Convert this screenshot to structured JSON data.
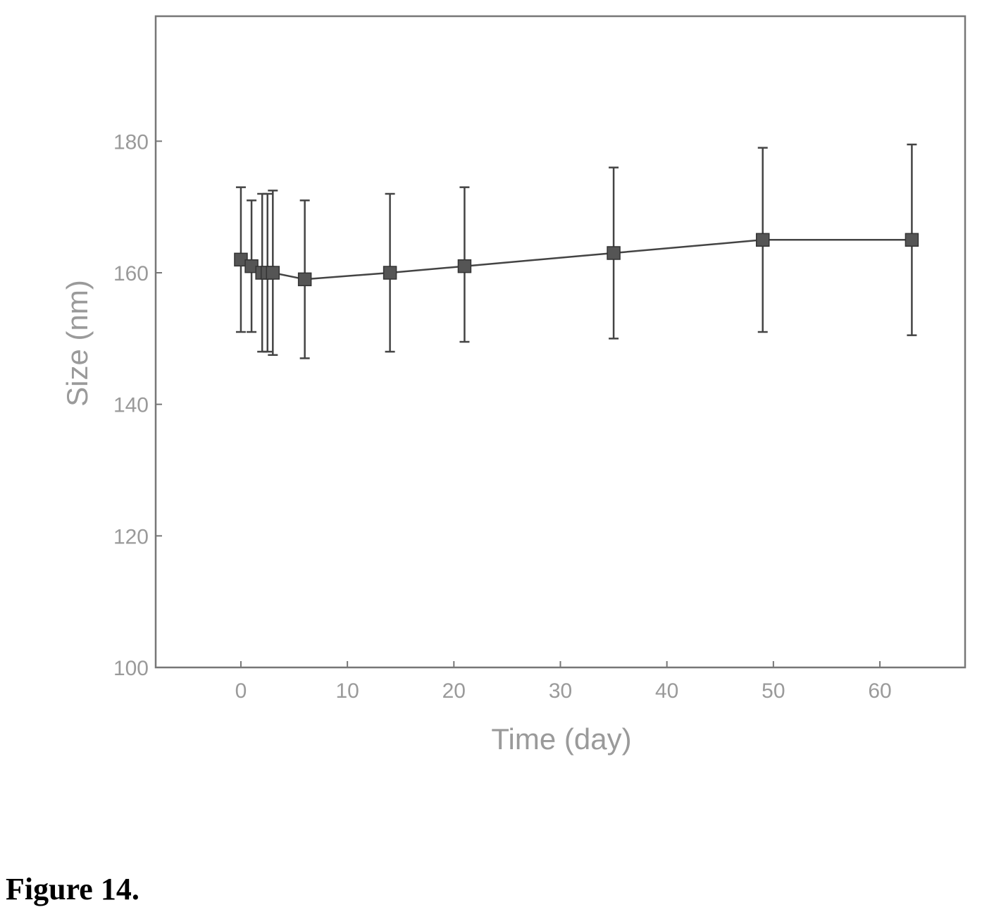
{
  "chart_data": {
    "type": "scatter",
    "xlabel": "Time (day)",
    "ylabel": "Size (nm)",
    "xlim": [
      -8,
      68
    ],
    "ylim": [
      100,
      199
    ],
    "xticks": [
      0,
      10,
      20,
      30,
      40,
      50,
      60
    ],
    "yticks": [
      100,
      120,
      140,
      160,
      180
    ],
    "grid": false,
    "series": [
      {
        "x": [
          0,
          1,
          2,
          2.5,
          3,
          6,
          14,
          21,
          35,
          49,
          63
        ],
        "y": [
          162,
          161,
          160,
          160,
          160,
          159,
          160,
          161,
          163,
          165,
          165
        ],
        "err_upper": [
          173,
          171,
          172,
          172,
          172.5,
          171,
          172,
          173,
          176,
          179,
          179.5
        ],
        "err_lower": [
          151,
          151,
          148,
          148,
          147.5,
          147,
          148,
          149.5,
          150,
          151,
          150.5
        ]
      }
    ],
    "marker": "square",
    "line": true,
    "colors": {
      "marker": "#555555",
      "line": "#444444",
      "text": "#9a9a9a",
      "axis": "#777777"
    }
  },
  "caption": "Figure 14."
}
